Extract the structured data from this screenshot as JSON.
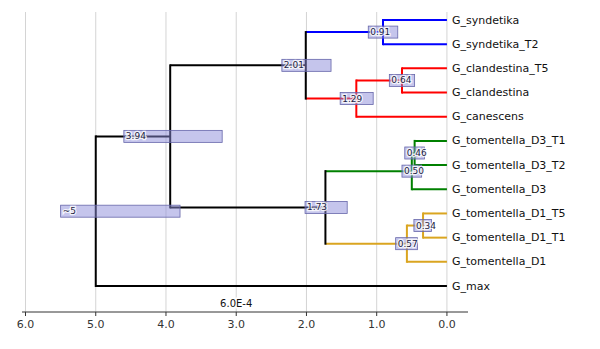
{
  "chart_data": {
    "type": "tree",
    "xlim": [
      6.05,
      -0.3
    ],
    "xticks": [
      {
        "value": 6.0,
        "label": "6.0"
      },
      {
        "value": 5.0,
        "label": "5.0"
      },
      {
        "value": 4.0,
        "label": "4.0"
      },
      {
        "value": 3.0,
        "label": "3.0"
      },
      {
        "value": 2.0,
        "label": "2.0"
      },
      {
        "value": 1.0,
        "label": "1.0"
      },
      {
        "value": 0.0,
        "label": "0.0"
      }
    ],
    "grid": true,
    "tip_value": 0.0,
    "annotations": [
      {
        "text": "6.0E-4",
        "x": 3.0
      }
    ],
    "tree": {
      "label": "~5",
      "value": 5.0,
      "ci": [
        3.8,
        5.5
      ],
      "color": "black",
      "children": [
        {
          "label": "3.94",
          "value": 3.94,
          "ci": [
            3.2,
            4.6
          ],
          "color": "black",
          "children": [
            {
              "label": "2.01",
              "value": 2.01,
              "ci": [
                1.65,
                2.35
              ],
              "color": "black",
              "children": [
                {
                  "label": "0.91",
                  "value": 0.91,
                  "ci": [
                    0.7,
                    1.12
                  ],
                  "color": "blue",
                  "children": [
                    "G_syndetika",
                    "G_syndetika_T2"
                  ]
                },
                {
                  "label": "1.29",
                  "value": 1.29,
                  "ci": [
                    1.05,
                    1.52
                  ],
                  "color": "red",
                  "children": [
                    {
                      "label": "0.64",
                      "value": 0.64,
                      "ci": [
                        0.46,
                        0.82
                      ],
                      "color": "red",
                      "children": [
                        "G_clandestina_T5",
                        "G_clandestina"
                      ]
                    },
                    "G_canescens"
                  ]
                }
              ]
            },
            {
              "label": "1.73",
              "value": 1.73,
              "ci": [
                1.42,
                2.02
              ],
              "color": "black",
              "children": [
                {
                  "label": "0.50",
                  "value": 0.5,
                  "ci": [
                    0.36,
                    0.64
                  ],
                  "color": "green",
                  "children": [
                    {
                      "label": "0.46",
                      "value": 0.46,
                      "ci": [
                        0.32,
                        0.6
                      ],
                      "color": "green",
                      "children": [
                        "G_tomentella_D3_T1",
                        "G_tomentella_D3_T2"
                      ]
                    },
                    "G_tomentella_D3"
                  ]
                },
                {
                  "label": "0.57",
                  "value": 0.57,
                  "ci": [
                    0.42,
                    0.73
                  ],
                  "color": "#DAA520",
                  "children": [
                    {
                      "label": "0.34",
                      "value": 0.34,
                      "ci": [
                        0.22,
                        0.47
                      ],
                      "color": "#DAA520",
                      "children": [
                        "G_tomentella_D1_T5",
                        "G_tomentella_D1_T1"
                      ]
                    },
                    "G_tomentella_D1"
                  ]
                }
              ]
            }
          ]
        },
        "G_max"
      ]
    }
  }
}
